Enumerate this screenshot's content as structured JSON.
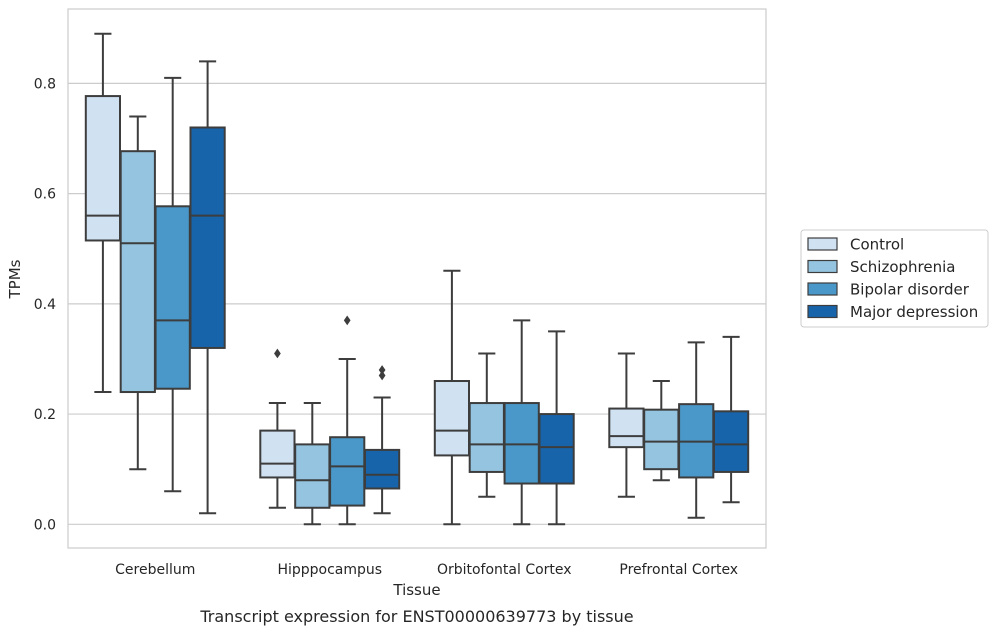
{
  "chart_data": {
    "type": "boxplot",
    "title": "",
    "caption": "Transcript expression for ENST00000639773 by tissue",
    "xlabel": "Tissue",
    "ylabel": "TPMs",
    "ylim": [
      -0.043,
      0.935
    ],
    "yticks": [
      0.0,
      0.2,
      0.4,
      0.6,
      0.8
    ],
    "ytick_labels": [
      "0.0",
      "0.2",
      "0.4",
      "0.6",
      "0.8"
    ],
    "grid": "horizontal",
    "legend_position": "right",
    "categories": [
      "Cerebellum",
      "Hipppocampus",
      "Orbitofontal Cortex",
      "Prefrontal Cortex"
    ],
    "series": [
      {
        "name": "Control",
        "color": "#d0e1f2",
        "boxes": [
          {
            "whislo": 0.24,
            "q1": 0.515,
            "med": 0.56,
            "q3": 0.777,
            "whishi": 0.89,
            "fliers": []
          },
          {
            "whislo": 0.03,
            "q1": 0.085,
            "med": 0.11,
            "q3": 0.17,
            "whishi": 0.22,
            "fliers": [
              0.31
            ]
          },
          {
            "whislo": 0.0,
            "q1": 0.125,
            "med": 0.17,
            "q3": 0.26,
            "whishi": 0.46,
            "fliers": []
          },
          {
            "whislo": 0.05,
            "q1": 0.14,
            "med": 0.16,
            "q3": 0.21,
            "whishi": 0.31,
            "fliers": []
          }
        ]
      },
      {
        "name": "Schizophrenia",
        "color": "#94c4df",
        "boxes": [
          {
            "whislo": 0.1,
            "q1": 0.24,
            "med": 0.51,
            "q3": 0.677,
            "whishi": 0.74,
            "fliers": []
          },
          {
            "whislo": 0.0,
            "q1": 0.03,
            "med": 0.08,
            "q3": 0.145,
            "whishi": 0.22,
            "fliers": []
          },
          {
            "whislo": 0.05,
            "q1": 0.095,
            "med": 0.145,
            "q3": 0.22,
            "whishi": 0.31,
            "fliers": []
          },
          {
            "whislo": 0.08,
            "q1": 0.1,
            "med": 0.15,
            "q3": 0.208,
            "whishi": 0.26,
            "fliers": []
          }
        ]
      },
      {
        "name": "Bipolar disorder",
        "color": "#4a98c9",
        "boxes": [
          {
            "whislo": 0.06,
            "q1": 0.246,
            "med": 0.37,
            "q3": 0.577,
            "whishi": 0.81,
            "fliers": []
          },
          {
            "whislo": 0.0,
            "q1": 0.034,
            "med": 0.105,
            "q3": 0.158,
            "whishi": 0.3,
            "fliers": [
              0.37
            ]
          },
          {
            "whislo": 0.0,
            "q1": 0.074,
            "med": 0.145,
            "q3": 0.22,
            "whishi": 0.37,
            "fliers": []
          },
          {
            "whislo": 0.012,
            "q1": 0.085,
            "med": 0.15,
            "q3": 0.218,
            "whishi": 0.33,
            "fliers": []
          }
        ]
      },
      {
        "name": "Major depression",
        "color": "#1764ab",
        "boxes": [
          {
            "whislo": 0.02,
            "q1": 0.32,
            "med": 0.56,
            "q3": 0.72,
            "whishi": 0.84,
            "fliers": []
          },
          {
            "whislo": 0.02,
            "q1": 0.065,
            "med": 0.09,
            "q3": 0.135,
            "whishi": 0.23,
            "fliers": [
              0.27,
              0.28
            ]
          },
          {
            "whislo": 0.0,
            "q1": 0.074,
            "med": 0.14,
            "q3": 0.2,
            "whishi": 0.35,
            "fliers": []
          },
          {
            "whislo": 0.04,
            "q1": 0.095,
            "med": 0.145,
            "q3": 0.205,
            "whishi": 0.34,
            "fliers": []
          }
        ]
      }
    ]
  }
}
